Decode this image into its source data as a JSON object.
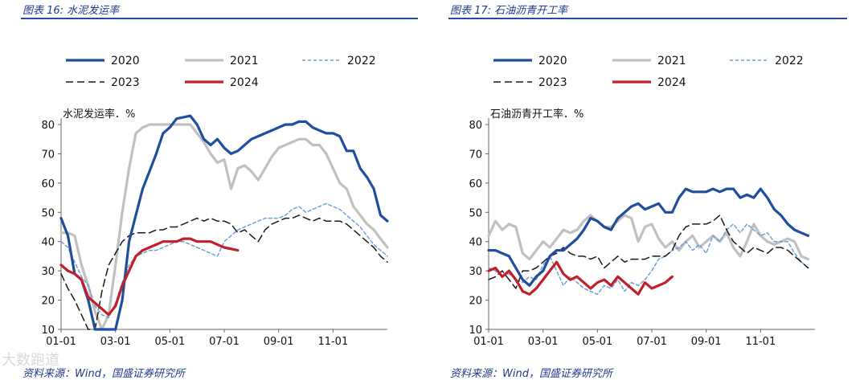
{
  "watermark": "大数跑道",
  "chart_data": [
    {
      "type": "line",
      "title": "图表 16: 水泥发运率",
      "ylabel": "水泥发运率．%",
      "source": "资料来源：Wind，国盛证券研究所",
      "ylim": [
        10,
        80
      ],
      "yticks": [
        10,
        20,
        30,
        40,
        50,
        60,
        70,
        80
      ],
      "xlim": [
        1,
        13
      ],
      "xticks": [
        {
          "v": 1,
          "label": "01-01"
        },
        {
          "v": 3,
          "label": "03-01"
        },
        {
          "v": 5,
          "label": "05-01"
        },
        {
          "v": 7,
          "label": "07-01"
        },
        {
          "v": 9,
          "label": "09-01"
        },
        {
          "v": 11,
          "label": "11-01"
        }
      ],
      "series": [
        {
          "name": "2020",
          "color": "#1f4e9c",
          "width": 3.2,
          "dash": "",
          "x": [
            1.0,
            1.25,
            1.5,
            1.75,
            2.0,
            2.25,
            2.5,
            2.75,
            3.0,
            3.25,
            3.5,
            3.75,
            4.0,
            4.25,
            4.5,
            4.75,
            5.0,
            5.25,
            5.5,
            5.75,
            6.0,
            6.25,
            6.5,
            6.75,
            7.0,
            7.25,
            7.5,
            7.75,
            8.0,
            8.25,
            8.5,
            8.75,
            9.0,
            9.25,
            9.5,
            9.75,
            10.0,
            10.25,
            10.5,
            10.75,
            11.0,
            11.25,
            11.5,
            11.75,
            12.0,
            12.25,
            12.5,
            12.75,
            13.0
          ],
          "y": [
            48,
            42,
            29,
            27,
            20,
            10,
            10,
            10,
            10,
            20,
            40,
            49,
            58,
            64,
            70,
            77,
            79,
            82,
            82.5,
            83,
            80,
            75,
            73,
            75,
            72,
            70,
            71,
            73,
            75,
            76,
            77,
            78,
            79,
            80,
            80,
            81,
            81,
            79,
            78,
            77,
            77,
            76,
            71,
            71,
            65,
            62,
            58,
            49,
            47
          ]
        },
        {
          "name": "2021",
          "color": "#c0c0c0",
          "width": 3.2,
          "dash": "",
          "x": [
            1.0,
            1.25,
            1.5,
            1.75,
            2.0,
            2.25,
            2.5,
            2.75,
            3.0,
            3.25,
            3.5,
            3.75,
            4.0,
            4.25,
            4.5,
            4.75,
            5.0,
            5.25,
            5.5,
            5.75,
            6.0,
            6.25,
            6.5,
            6.75,
            7.0,
            7.25,
            7.5,
            7.75,
            8.0,
            8.25,
            8.5,
            8.75,
            9.0,
            9.25,
            9.5,
            9.75,
            10.0,
            10.25,
            10.5,
            10.75,
            11.0,
            11.25,
            11.5,
            11.75,
            12.0,
            12.25,
            12.5,
            12.75,
            13.0
          ],
          "y": [
            43,
            43,
            42,
            32,
            25,
            16,
            10,
            15,
            32,
            50,
            65,
            77,
            79,
            80,
            80,
            80,
            80,
            80,
            80,
            80,
            77,
            74,
            70,
            67,
            68,
            58,
            65,
            66,
            64,
            61,
            65,
            69,
            72,
            73,
            74,
            75,
            75,
            73,
            73,
            70,
            65,
            60,
            58,
            52,
            49,
            46,
            44,
            41,
            38
          ]
        },
        {
          "name": "2022",
          "color": "#6f9fd8",
          "width": 1.5,
          "dash": "4,3",
          "x": [
            1.0,
            1.25,
            1.5,
            1.75,
            2.0,
            2.25,
            2.5,
            2.75,
            3.0,
            3.25,
            3.5,
            3.75,
            4.0,
            4.25,
            4.5,
            4.75,
            5.0,
            5.25,
            5.5,
            5.75,
            6.0,
            6.25,
            6.5,
            6.75,
            7.0,
            7.25,
            7.5,
            7.75,
            8.0,
            8.25,
            8.5,
            8.75,
            9.0,
            9.25,
            9.5,
            9.75,
            10.0,
            10.25,
            10.5,
            10.75,
            11.0,
            11.25,
            11.5,
            11.75,
            12.0,
            12.25,
            12.5,
            12.75,
            13.0
          ],
          "y": [
            40,
            38,
            33,
            28,
            25,
            18,
            15,
            14,
            19,
            26,
            32,
            35,
            36,
            37,
            37,
            38,
            39,
            40,
            40,
            39,
            38,
            37,
            36,
            35,
            40,
            42,
            44,
            45,
            46,
            47,
            48,
            48,
            48,
            49,
            51,
            52,
            50,
            51,
            52,
            53,
            52,
            51,
            49,
            47,
            45,
            42,
            39,
            37,
            35
          ]
        },
        {
          "name": "2023",
          "color": "#1a1a1a",
          "width": 1.5,
          "dash": "9,5",
          "x": [
            1.0,
            1.25,
            1.5,
            1.75,
            2.0,
            2.25,
            2.5,
            2.75,
            3.0,
            3.25,
            3.5,
            3.75,
            4.0,
            4.25,
            4.5,
            4.75,
            5.0,
            5.25,
            5.5,
            5.75,
            6.0,
            6.25,
            6.5,
            6.75,
            7.0,
            7.25,
            7.5,
            7.75,
            8.0,
            8.25,
            8.5,
            8.75,
            9.0,
            9.25,
            9.5,
            9.75,
            10.0,
            10.25,
            10.5,
            10.75,
            11.0,
            11.25,
            11.5,
            11.75,
            12.0,
            12.25,
            12.5,
            12.75,
            13.0
          ],
          "y": [
            29,
            24,
            20,
            15,
            10,
            10,
            23,
            32,
            36,
            40,
            42,
            43,
            43,
            43,
            44,
            44,
            45,
            45,
            46,
            47,
            48,
            47,
            48,
            47,
            47,
            46,
            43,
            44,
            42,
            40,
            44,
            46,
            47,
            48,
            48,
            49,
            48,
            47,
            48,
            47,
            47,
            47,
            46,
            44,
            42,
            40,
            38,
            35,
            33
          ]
        },
        {
          "name": "2024",
          "color": "#c0202a",
          "width": 3.2,
          "dash": "",
          "x": [
            1.0,
            1.25,
            1.5,
            1.75,
            2.0,
            2.25,
            2.5,
            2.75,
            3.0,
            3.25,
            3.5,
            3.75,
            4.0,
            4.25,
            4.5,
            4.75,
            5.0,
            5.25,
            5.5,
            5.75,
            6.0,
            6.25,
            6.5,
            6.75,
            7.0,
            7.25,
            7.5
          ],
          "y": [
            32,
            30,
            29,
            27,
            21,
            19,
            17,
            15,
            18,
            25,
            30,
            35,
            37,
            38,
            39,
            40,
            40,
            40,
            41,
            41,
            40,
            40,
            40,
            39,
            38,
            37.5,
            37
          ]
        }
      ]
    },
    {
      "type": "line",
      "title": "图表 17: 石油沥青开工率",
      "ylabel": "石油沥青开工率．%",
      "source": "资料来源：Wind，国盛证券研究所",
      "ylim": [
        10,
        80
      ],
      "yticks": [
        10,
        20,
        30,
        40,
        50,
        60,
        70,
        80
      ],
      "xlim": [
        1,
        13
      ],
      "xticks": [
        {
          "v": 1,
          "label": "01-01"
        },
        {
          "v": 3,
          "label": "03-01"
        },
        {
          "v": 5,
          "label": "05-01"
        },
        {
          "v": 7,
          "label": "07-01"
        },
        {
          "v": 9,
          "label": "09-01"
        },
        {
          "v": 11,
          "label": "11-01"
        }
      ],
      "series": [
        {
          "name": "2020",
          "color": "#1f4e9c",
          "width": 3.2,
          "dash": "",
          "x": [
            1.0,
            1.25,
            1.5,
            1.75,
            2.0,
            2.25,
            2.5,
            2.75,
            3.0,
            3.25,
            3.5,
            3.75,
            4.0,
            4.25,
            4.5,
            4.75,
            5.0,
            5.25,
            5.5,
            5.75,
            6.0,
            6.25,
            6.5,
            6.75,
            7.0,
            7.25,
            7.5,
            7.75,
            8.0,
            8.25,
            8.5,
            8.75,
            9.0,
            9.25,
            9.5,
            9.75,
            10.0,
            10.25,
            10.5,
            10.75,
            11.0,
            11.25,
            11.5,
            11.75,
            12.0,
            12.25,
            12.5,
            12.75
          ],
          "y": [
            37,
            37,
            36,
            35,
            31,
            27,
            25,
            28,
            30,
            35,
            37,
            37,
            39,
            41,
            44,
            48,
            47,
            45,
            44,
            48,
            50,
            52,
            53,
            51,
            52,
            53,
            50,
            50,
            55,
            58,
            57,
            57,
            57,
            58,
            57,
            58,
            58,
            55,
            56,
            55,
            58,
            55,
            51,
            49,
            46,
            44,
            43,
            42
          ]
        },
        {
          "name": "2021",
          "color": "#c0c0c0",
          "width": 3.2,
          "dash": "",
          "x": [
            1.0,
            1.25,
            1.5,
            1.75,
            2.0,
            2.25,
            2.5,
            2.75,
            3.0,
            3.25,
            3.5,
            3.75,
            4.0,
            4.25,
            4.5,
            4.75,
            5.0,
            5.25,
            5.5,
            5.75,
            6.0,
            6.25,
            6.5,
            6.75,
            7.0,
            7.25,
            7.5,
            7.75,
            8.0,
            8.25,
            8.5,
            8.75,
            9.0,
            9.25,
            9.5,
            9.75,
            10.0,
            10.25,
            10.5,
            10.75,
            11.0,
            11.25,
            11.5,
            11.75,
            12.0,
            12.25,
            12.5,
            12.75
          ],
          "y": [
            42,
            47,
            44,
            46,
            45,
            36,
            34,
            37,
            40,
            38,
            41,
            44,
            43,
            44,
            47,
            49,
            47,
            45,
            45,
            47,
            49,
            48,
            40,
            45,
            46,
            41,
            38,
            40,
            37,
            40,
            42,
            38,
            40,
            42,
            40,
            43,
            38,
            35,
            40,
            46,
            42,
            40,
            39,
            40,
            41,
            40,
            35,
            34
          ]
        },
        {
          "name": "2022",
          "color": "#6f9fd8",
          "width": 1.5,
          "dash": "4,3",
          "x": [
            1.0,
            1.25,
            1.5,
            1.75,
            2.0,
            2.25,
            2.5,
            2.75,
            3.0,
            3.25,
            3.5,
            3.75,
            4.0,
            4.25,
            4.5,
            4.75,
            5.0,
            5.25,
            5.5,
            5.75,
            6.0,
            6.25,
            6.5,
            6.75,
            7.0,
            7.25,
            7.5,
            7.75,
            8.0,
            8.25,
            8.5,
            8.75,
            9.0,
            9.25,
            9.5,
            9.75,
            10.0,
            10.25,
            10.5,
            10.75,
            11.0,
            11.25,
            11.5,
            11.75,
            12.0,
            12.25,
            12.5,
            12.75
          ],
          "y": [
            31,
            30,
            28,
            29,
            27,
            26,
            28,
            27,
            32,
            35,
            30,
            25,
            28,
            26,
            24,
            23,
            22,
            25,
            24,
            27,
            23,
            26,
            25,
            27,
            30,
            34,
            35,
            37,
            38,
            40,
            37,
            39,
            36,
            42,
            40,
            44,
            46,
            43,
            46,
            44,
            42,
            43,
            40,
            40,
            40,
            36,
            33,
            31
          ]
        },
        {
          "name": "2023",
          "color": "#1a1a1a",
          "width": 1.5,
          "dash": "9,5",
          "x": [
            1.0,
            1.25,
            1.5,
            1.75,
            2.0,
            2.25,
            2.5,
            2.75,
            3.0,
            3.25,
            3.5,
            3.75,
            4.0,
            4.25,
            4.5,
            4.75,
            5.0,
            5.25,
            5.5,
            5.75,
            6.0,
            6.25,
            6.5,
            6.75,
            7.0,
            7.25,
            7.5,
            7.75,
            8.0,
            8.25,
            8.5,
            8.75,
            9.0,
            9.25,
            9.5,
            9.75,
            10.0,
            10.25,
            10.5,
            10.75,
            11.0,
            11.25,
            11.5,
            11.75,
            12.0,
            12.25,
            12.5,
            12.75
          ],
          "y": [
            27,
            28,
            30,
            27,
            24,
            30,
            30,
            31,
            33,
            35,
            36,
            38,
            36,
            35,
            35,
            34,
            35,
            31,
            33,
            35,
            33,
            34,
            34,
            34,
            35,
            35,
            35,
            37,
            42,
            45,
            46,
            46,
            46,
            47,
            49,
            44,
            40,
            38,
            36,
            38,
            37,
            36,
            38,
            38,
            37,
            35,
            33,
            31
          ]
        },
        {
          "name": "2024",
          "color": "#c0202a",
          "width": 3.2,
          "dash": "",
          "x": [
            1.0,
            1.25,
            1.5,
            1.75,
            2.0,
            2.25,
            2.5,
            2.75,
            3.0,
            3.25,
            3.5,
            3.75,
            4.0,
            4.25,
            4.5,
            4.75,
            5.0,
            5.25,
            5.5,
            5.75,
            6.0,
            6.25,
            6.5,
            6.75,
            7.0,
            7.25,
            7.5,
            7.75
          ],
          "y": [
            30,
            31,
            28,
            30,
            27,
            23,
            22,
            24,
            27,
            30,
            33,
            29,
            27,
            28,
            26,
            24,
            26,
            27,
            25,
            28,
            26,
            24,
            22,
            26,
            24,
            25,
            26,
            28
          ]
        }
      ]
    }
  ]
}
